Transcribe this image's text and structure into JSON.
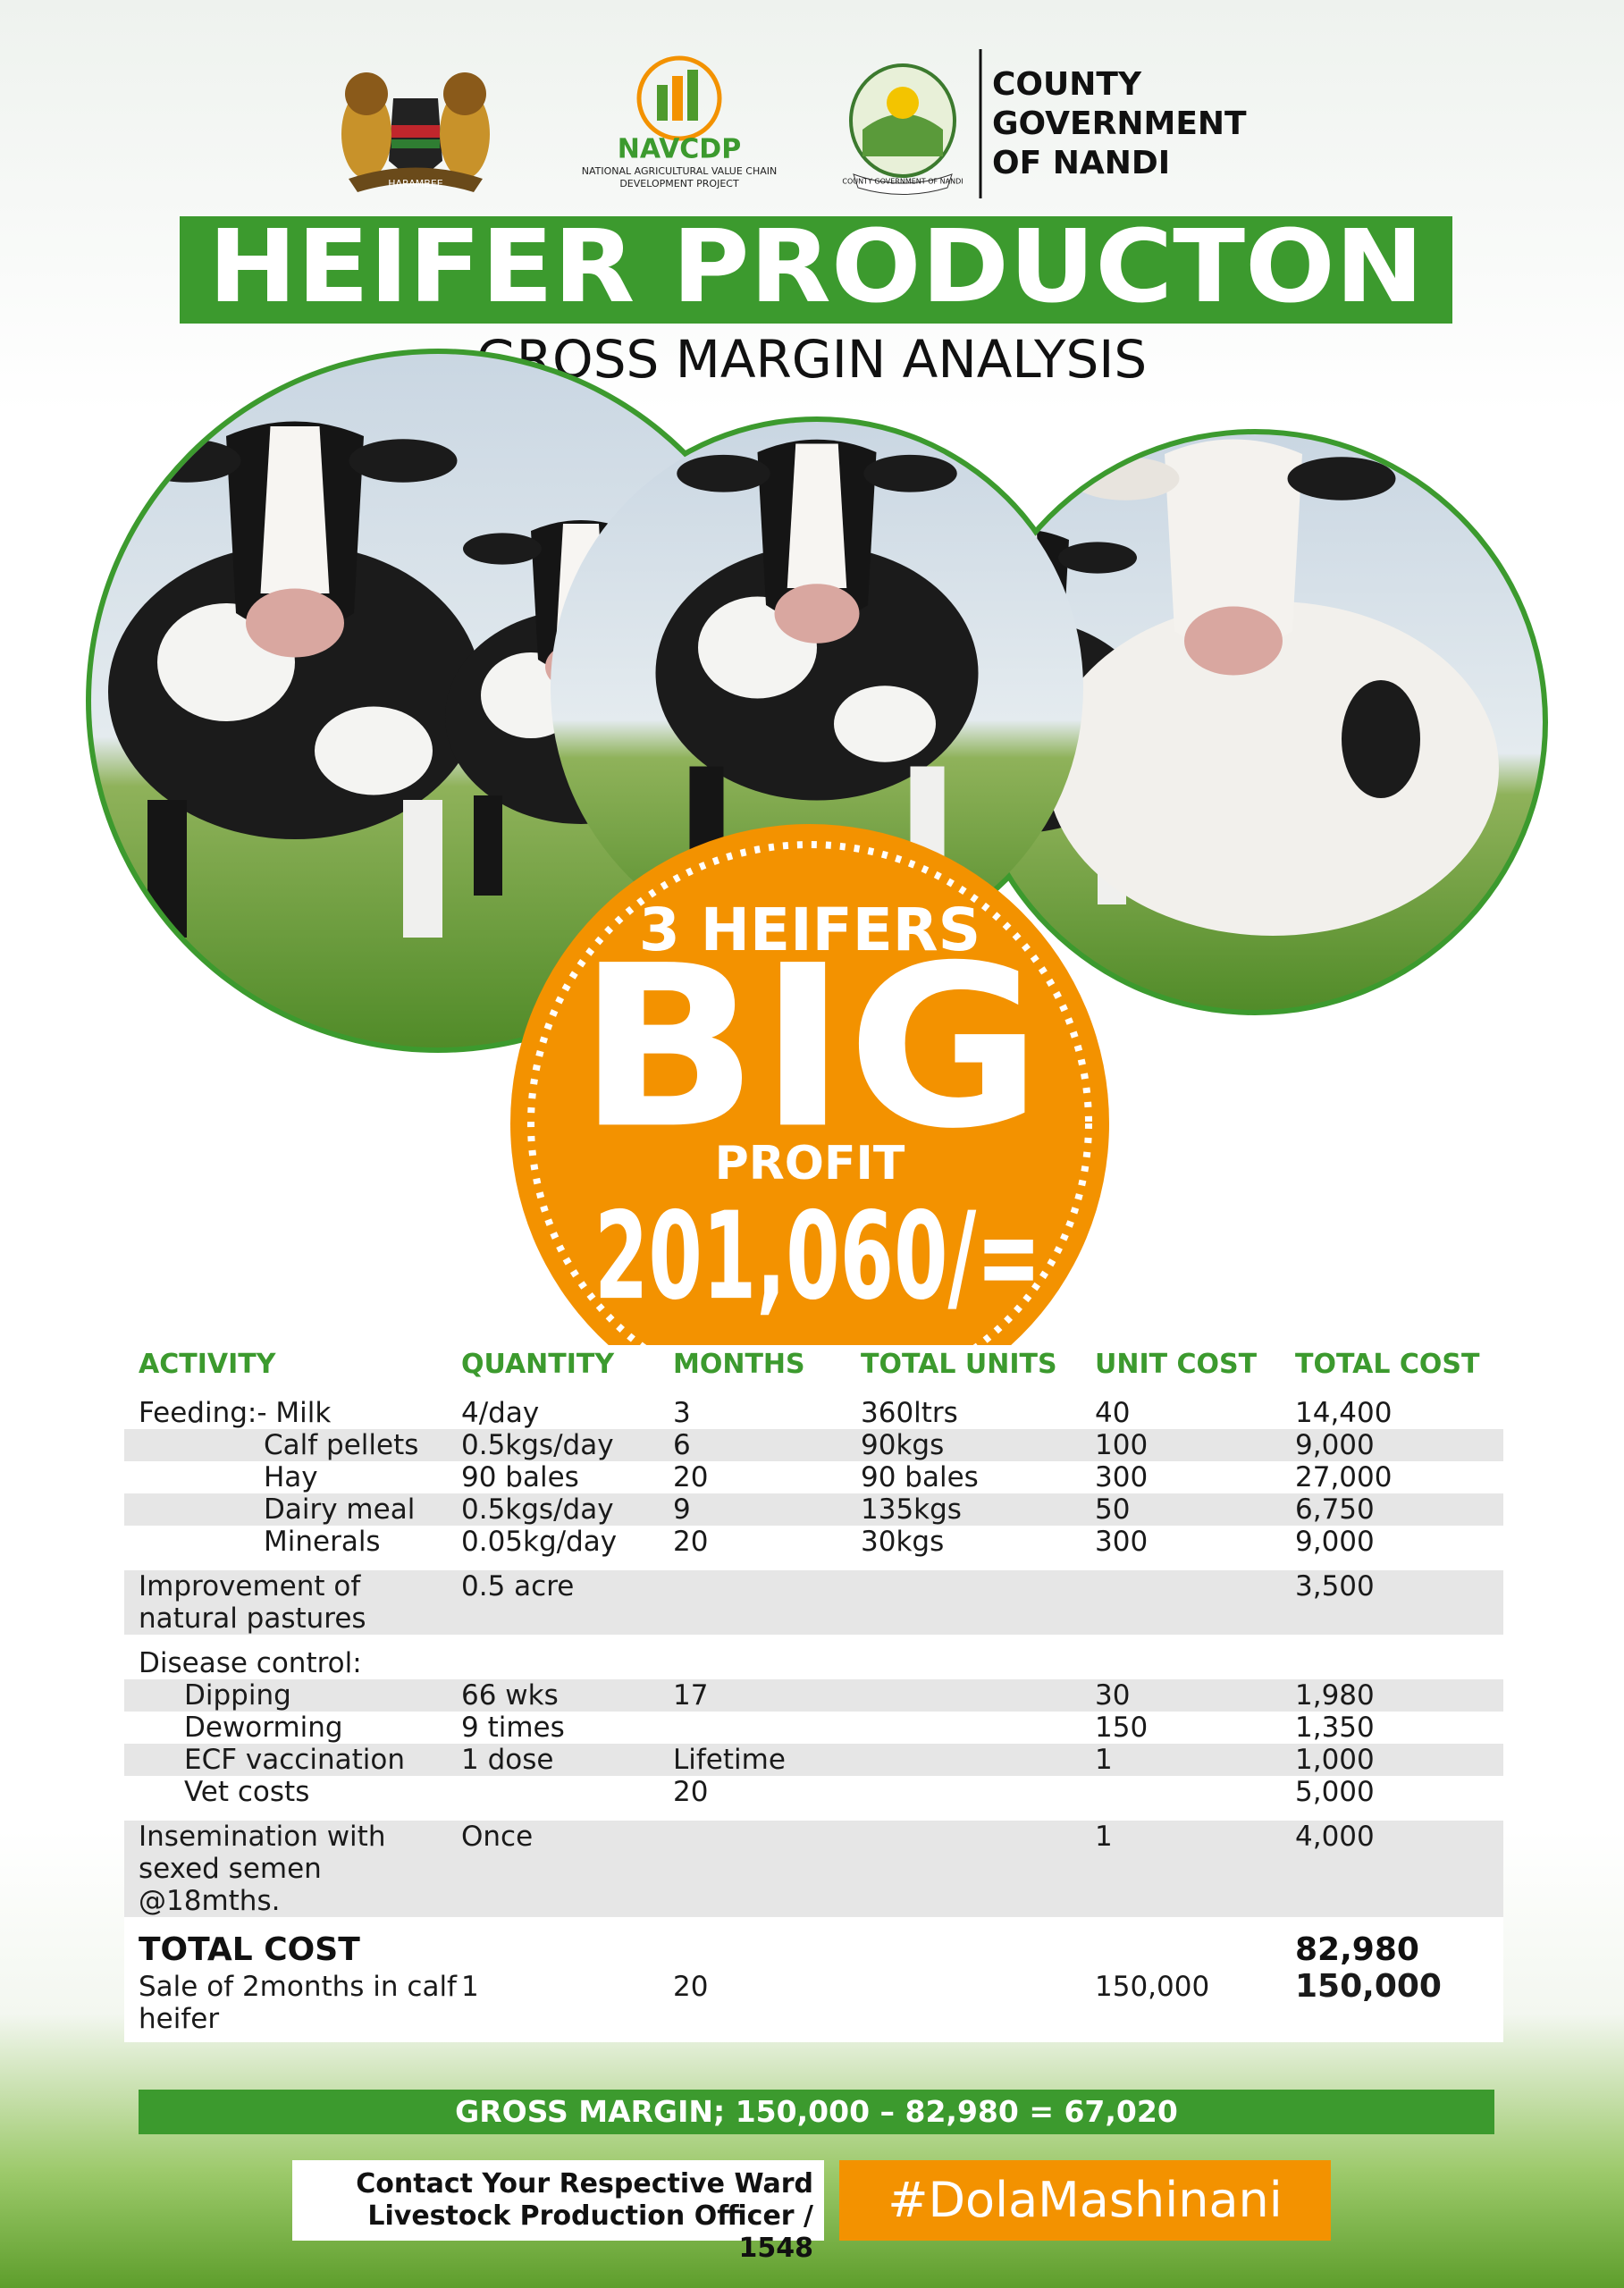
{
  "header": {
    "coat_of_arms_motto": "HARAMBEE",
    "navcdp_name": "NAVCDP",
    "navcdp_full": [
      "NATIONAL AGRICULTURAL VALUE CHAIN",
      "DEVELOPMENT PROJECT"
    ],
    "nandi_seal_text": "COUNTY GOVERNMENT OF NANDI",
    "county_lines": [
      "COUNTY",
      "GOVERNMENT",
      "OF NANDI"
    ],
    "title": "HEIFER PRODUCTON",
    "subtitle": "GROSS MARGIN ANALYSIS"
  },
  "badge": {
    "line1": "3 HEIFERS",
    "big": "BIG",
    "line3": "PROFIT",
    "amount": "201,060/="
  },
  "table": {
    "headers": [
      "ACTIVITY",
      "QUANTITY",
      "MONTHS",
      "TOTAL UNITS",
      "UNIT COST",
      "TOTAL COST"
    ],
    "sections": [
      {
        "items": [
          {
            "activity": "Feeding:- Milk",
            "quantity": "4/day",
            "months": "3",
            "total_units": "360ltrs",
            "unit_cost": "40",
            "total_cost": "14,400"
          },
          {
            "activity": "Calf pellets",
            "quantity": "0.5kgs/day",
            "months": "6",
            "total_units": "90kgs",
            "unit_cost": "100",
            "total_cost": "9,000"
          },
          {
            "activity": "Hay",
            "quantity": "90 bales",
            "months": "20",
            "total_units": "90 bales",
            "unit_cost": "300",
            "total_cost": "27,000"
          },
          {
            "activity": "Dairy meal",
            "quantity": "0.5kgs/day",
            "months": "9",
            "total_units": "135kgs",
            "unit_cost": "50",
            "total_cost": "6,750"
          },
          {
            "activity": "Minerals",
            "quantity": "0.05kg/day",
            "months": "20",
            "total_units": "30kgs",
            "unit_cost": "300",
            "total_cost": "9,000"
          }
        ]
      },
      {
        "items": [
          {
            "activity": "Improvement of natural pastures",
            "quantity": "0.5 acre",
            "total_cost": "3,500"
          }
        ]
      },
      {
        "heading": "Disease control:",
        "items": [
          {
            "activity": "Dipping",
            "quantity": "66 wks",
            "months": "17",
            "unit_cost": "30",
            "total_cost": "1,980"
          },
          {
            "activity": "Deworming",
            "quantity": "9 times",
            "unit_cost": "150",
            "total_cost": "1,350"
          },
          {
            "activity": "ECF vaccination",
            "quantity": "1 dose",
            "months": "Lifetime",
            "unit_cost": "1",
            "total_cost": "1,000"
          },
          {
            "activity": "Vet costs",
            "months": "20",
            "total_cost": "5,000"
          }
        ]
      },
      {
        "items": [
          {
            "activity": "Insemination with sexed semen @18mths.",
            "quantity": "Once",
            "unit_cost": "1",
            "total_cost": "4,000"
          }
        ]
      }
    ],
    "total": {
      "activity": "TOTAL COST",
      "total_cost": "82,980"
    },
    "sale": {
      "activity": "Sale of 2months in calf heifer",
      "quantity": "1",
      "months": "20",
      "unit_cost": "150,000",
      "total_cost": "150,000"
    },
    "gross_margin": "GROSS MARGIN; 150,000 – 82,980 = 67,020"
  },
  "footer": {
    "contact_lines": [
      "Contact Your Respective Ward",
      "Livestock Production Officer / 1548"
    ],
    "hashtag": "#DolaMashinani"
  }
}
